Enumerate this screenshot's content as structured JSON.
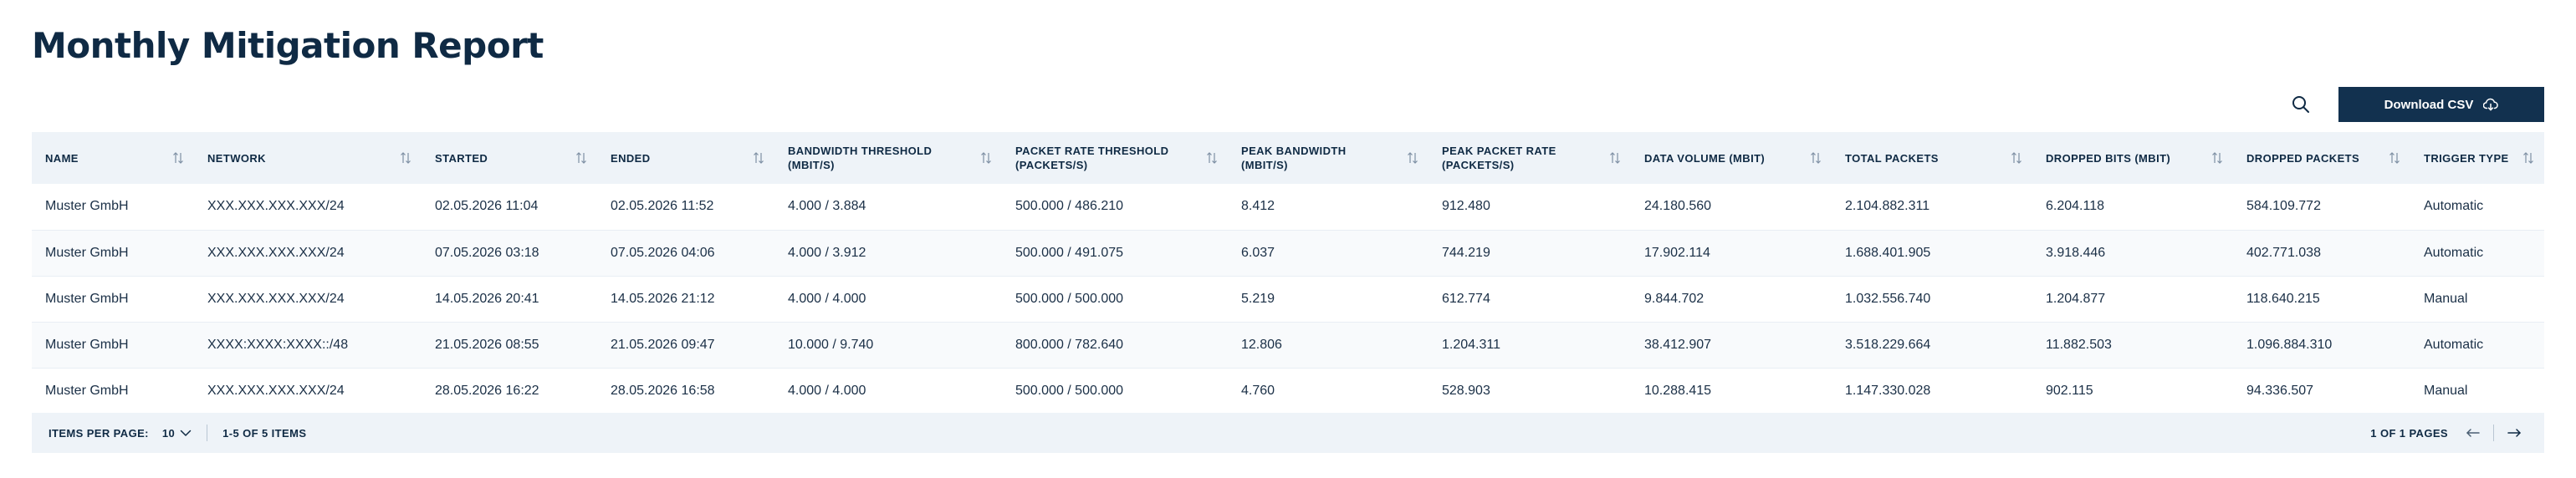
{
  "page": {
    "title": "Monthly Mitigation Report"
  },
  "toolbar": {
    "download_label": "Download CSV",
    "search_icon": "search-icon",
    "download_icon": "cloud-download-icon"
  },
  "table": {
    "columns": [
      "NAME",
      "NETWORK",
      "STARTED",
      "ENDED",
      "BANDWIDTH THRESHOLD (MBIT/S)",
      "PACKET RATE THRESHOLD (PACKETS/S)",
      "PEAK BANDWIDTH (MBIT/S)",
      "PEAK PACKET RATE (PACKETS/S)",
      "DATA VOLUME (MBIT)",
      "TOTAL PACKETS",
      "DROPPED BITS (MBIT)",
      "DROPPED PACKETS",
      "TRIGGER TYPE"
    ],
    "rows": [
      [
        "Muster GmbH",
        "XXX.XXX.XXX.XXX/24",
        "02.05.2026 11:04",
        "02.05.2026 11:52",
        "4.000 / 3.884",
        "500.000 / 486.210",
        "8.412",
        "912.480",
        "24.180.560",
        "2.104.882.311",
        "6.204.118",
        "584.109.772",
        "Automatic"
      ],
      [
        "Muster GmbH",
        "XXX.XXX.XXX.XXX/24",
        "07.05.2026 03:18",
        "07.05.2026 04:06",
        "4.000 / 3.912",
        "500.000 / 491.075",
        "6.037",
        "744.219",
        "17.902.114",
        "1.688.401.905",
        "3.918.446",
        "402.771.038",
        "Automatic"
      ],
      [
        "Muster GmbH",
        "XXX.XXX.XXX.XXX/24",
        "14.05.2026 20:41",
        "14.05.2026 21:12",
        "4.000 / 4.000",
        "500.000 / 500.000",
        "5.219",
        "612.774",
        "9.844.702",
        "1.032.556.740",
        "1.204.877",
        "118.640.215",
        "Manual"
      ],
      [
        "Muster GmbH",
        "XXXX:XXXX:XXXX::/48",
        "21.05.2026 08:55",
        "21.05.2026 09:47",
        "10.000 / 9.740",
        "800.000 / 782.640",
        "12.806",
        "1.204.311",
        "38.412.907",
        "3.518.229.664",
        "11.882.503",
        "1.096.884.310",
        "Automatic"
      ],
      [
        "Muster GmbH",
        "XXX.XXX.XXX.XXX/24",
        "28.05.2026 16:22",
        "28.05.2026 16:58",
        "4.000 / 4.000",
        "500.000 / 500.000",
        "4.760",
        "528.903",
        "10.288.415",
        "1.147.330.028",
        "902.115",
        "94.336.507",
        "Manual"
      ]
    ]
  },
  "footer": {
    "items_per_page_label": "ITEMS PER PAGE:",
    "items_per_page_value": "10",
    "items_range": "1-5 OF 5 ITEMS",
    "page_info": "1 OF 1 PAGES"
  },
  "colors": {
    "primary": "#12314f",
    "header_bg": "#eef3f8",
    "text": "#0f2a44"
  }
}
